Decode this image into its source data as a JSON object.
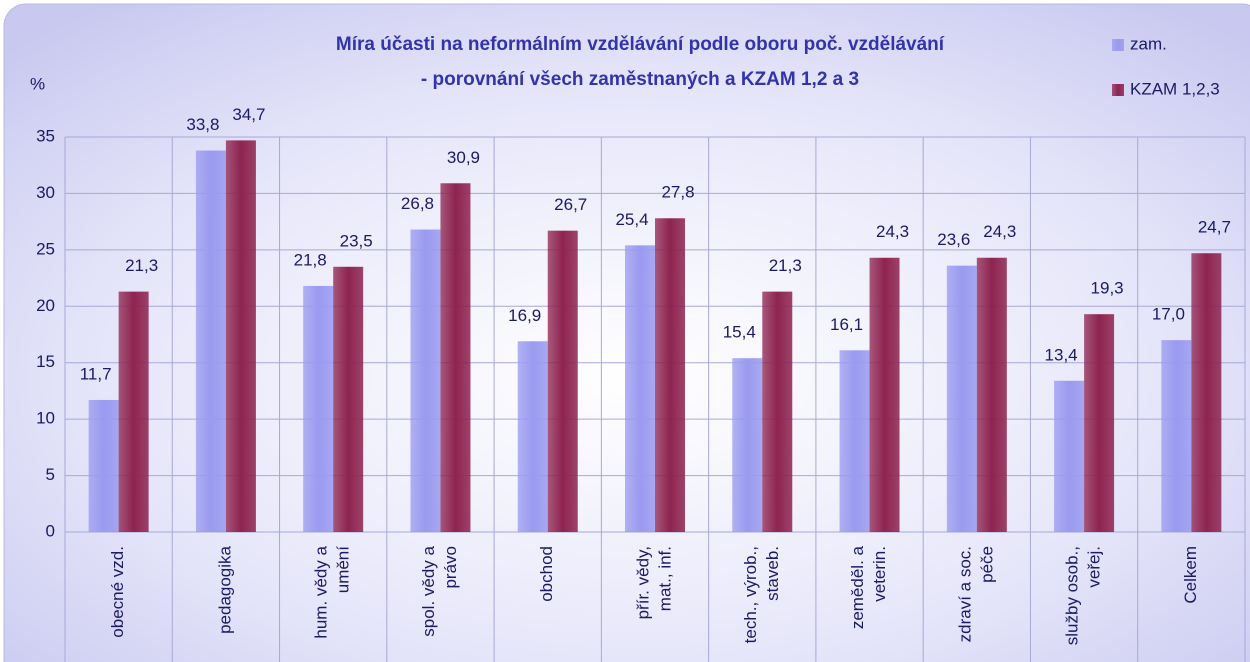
{
  "chart_data": {
    "type": "bar",
    "title": [
      "Míra účasti na neformálním vzdělávání podle oboru poč. vzdělávání",
      "- porovnání všech zaměstnaných a KZAM 1,2 a 3"
    ],
    "y_label": "%",
    "categories": [
      [
        "obecné vzd."
      ],
      [
        "pedagogika"
      ],
      [
        "hum. vědy a",
        "umění"
      ],
      [
        "spol. vědy a",
        "právo"
      ],
      [
        "obchod"
      ],
      [
        "přír. vědy,",
        "mat., inf."
      ],
      [
        "tech., výrob.,",
        "staveb."
      ],
      [
        "zeměděl. a",
        "veterin."
      ],
      [
        "zdraví a soc.",
        "péče"
      ],
      [
        "služby osob.,",
        "veřej."
      ],
      [
        "Celkem"
      ]
    ],
    "series": [
      {
        "name": "zam.",
        "color": "#9a9af0",
        "values": [
          11.7,
          33.8,
          21.8,
          26.8,
          16.9,
          25.4,
          15.4,
          16.1,
          23.6,
          13.4,
          17.0
        ],
        "value_labels": [
          "11,7",
          "33,8",
          "21,8",
          "26,8",
          "16,9",
          "25,4",
          "15,4",
          "16,1",
          "23,6",
          "13,4",
          "17,0"
        ]
      },
      {
        "name": "KZAM 1,2,3",
        "color": "#8e2450",
        "values": [
          21.3,
          34.7,
          23.5,
          30.9,
          26.7,
          27.8,
          21.3,
          24.3,
          24.3,
          19.3,
          24.7
        ],
        "value_labels": [
          "21,3",
          "34,7",
          "23,5",
          "30,9",
          "26,7",
          "27,8",
          "21,3",
          "24,3",
          "24,3",
          "19,3",
          "24,7"
        ]
      }
    ],
    "ylim": [
      0,
      35
    ],
    "yticks": [
      0,
      5,
      10,
      15,
      20,
      25,
      30,
      35
    ],
    "grid": true,
    "legend": "top-right"
  }
}
